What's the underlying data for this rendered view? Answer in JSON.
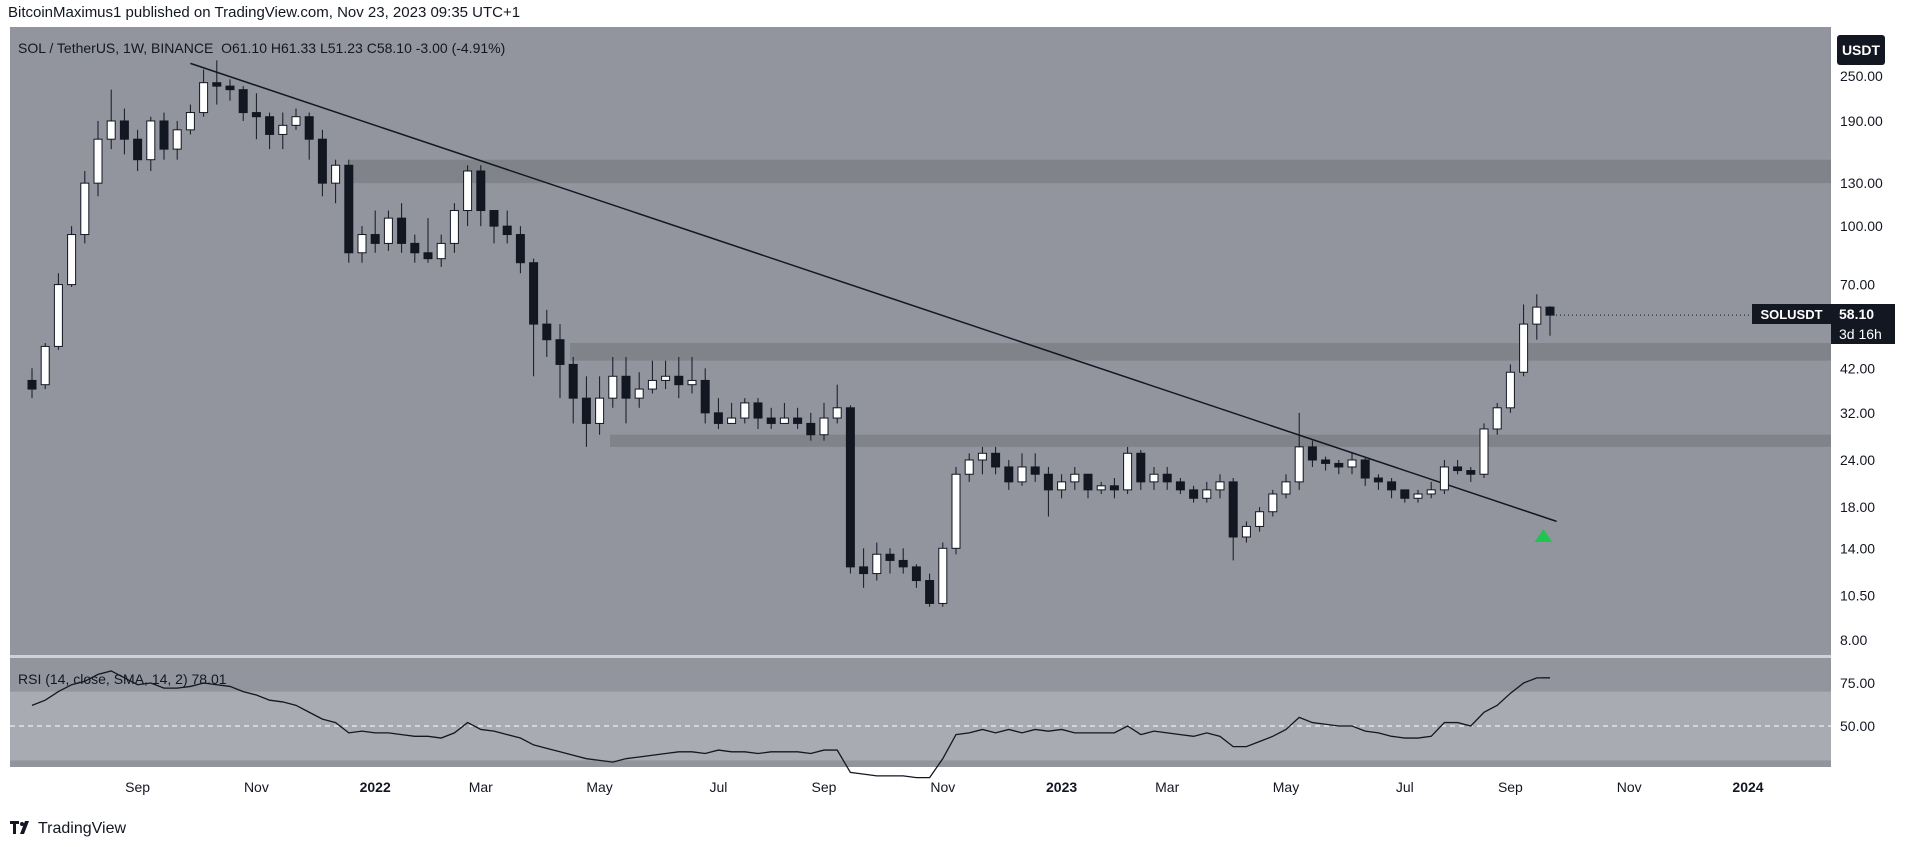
{
  "header": {
    "publisher": "BitcoinMaximus1 published on TradingView.com, Nov 23, 2023 09:35 UTC+1"
  },
  "legend": {
    "symbol": "SOL / TetherUS, 1W, BINANCE",
    "open_label": "O",
    "open": "61.10",
    "high_label": "H",
    "high": "61.33",
    "low_label": "L",
    "low": "51.23",
    "close_label": "C",
    "close": "58.10",
    "change": "-3.00 (-4.91%)"
  },
  "rsi_legend": {
    "label": "RSI (14, close, SMA, 14, 2)",
    "value": "78.01"
  },
  "currency_button": "USDT",
  "last_price": {
    "symbol": "SOLUSDT",
    "price": "58.10",
    "countdown": "3d 16h"
  },
  "footer": {
    "brand": "TradingView"
  },
  "colors": {
    "up": "#ffffff",
    "down": "#131722",
    "zone": "#7b7e85",
    "background": "#92959d",
    "arrow": "#21c453"
  },
  "icons": [
    "tradingview-logo-icon",
    "up-arrow-marker-icon"
  ],
  "chart_data": {
    "type": "candlestick",
    "title": "SOL / TetherUS, 1W, BINANCE",
    "y_scale": "log",
    "price_ticks": [
      "250.00",
      "190.00",
      "130.00",
      "100.00",
      "70.00",
      "42.00",
      "32.00",
      "24.00",
      "18.00",
      "14.00",
      "10.50",
      "8.00"
    ],
    "x_ticks": [
      "Sep",
      "Nov",
      "2022",
      "Mar",
      "May",
      "Jul",
      "Sep",
      "Nov",
      "2023",
      "Mar",
      "May",
      "Jul",
      "Sep",
      "Nov",
      "2024"
    ],
    "x_tick_weeks": [
      8,
      17,
      26,
      34,
      43,
      52,
      60,
      69,
      78,
      86,
      95,
      104,
      112,
      121,
      130
    ],
    "rsi_ticks": [
      "75.00",
      "50.00"
    ],
    "rsi_band": [
      30,
      70
    ],
    "horizontal_zones": [
      [
        130,
        150
      ],
      [
        44,
        49
      ],
      [
        26,
        28
      ]
    ],
    "trendline": {
      "from": {
        "week": 12,
        "price": 270
      },
      "to": {
        "week": 115.5,
        "price": 16.5
      }
    },
    "arrow": {
      "week": 114.5,
      "price": 15,
      "direction": "up"
    },
    "candles": [
      [
        39,
        37,
        42,
        35
      ],
      [
        38,
        48,
        49,
        37
      ],
      [
        48,
        70,
        75,
        47
      ],
      [
        70,
        95,
        100,
        69
      ],
      [
        95,
        130,
        140,
        90
      ],
      [
        130,
        170,
        190,
        120
      ],
      [
        170,
        190,
        230,
        160
      ],
      [
        190,
        170,
        205,
        155
      ],
      [
        170,
        150,
        180,
        140
      ],
      [
        150,
        190,
        195,
        140
      ],
      [
        190,
        160,
        200,
        150
      ],
      [
        160,
        180,
        190,
        150
      ],
      [
        180,
        200,
        210,
        175
      ],
      [
        200,
        240,
        260,
        195
      ],
      [
        240,
        235,
        275,
        210
      ],
      [
        235,
        230,
        245,
        215
      ],
      [
        230,
        200,
        235,
        190
      ],
      [
        200,
        195,
        225,
        170
      ],
      [
        195,
        175,
        200,
        160
      ],
      [
        175,
        185,
        200,
        160
      ],
      [
        185,
        195,
        205,
        180
      ],
      [
        195,
        170,
        200,
        150
      ],
      [
        170,
        130,
        180,
        120
      ],
      [
        130,
        145,
        150,
        115
      ],
      [
        145,
        85,
        150,
        80
      ],
      [
        85,
        95,
        100,
        80
      ],
      [
        95,
        90,
        110,
        85
      ],
      [
        90,
        105,
        110,
        86
      ],
      [
        105,
        90,
        115,
        85
      ],
      [
        90,
        85,
        95,
        80
      ],
      [
        85,
        82,
        105,
        80
      ],
      [
        82,
        90,
        95,
        78
      ],
      [
        90,
        110,
        115,
        85
      ],
      [
        110,
        140,
        145,
        100
      ],
      [
        140,
        110,
        145,
        100
      ],
      [
        110,
        100,
        110,
        90
      ],
      [
        100,
        95,
        110,
        90
      ],
      [
        95,
        80,
        100,
        75
      ],
      [
        80,
        55,
        82,
        40
      ],
      [
        55,
        50,
        60,
        45
      ],
      [
        50,
        43,
        55,
        35
      ],
      [
        43,
        35,
        45,
        30
      ],
      [
        35,
        30,
        40,
        26
      ],
      [
        30,
        35,
        40,
        28
      ],
      [
        35,
        40,
        45,
        33
      ],
      [
        40,
        35,
        45,
        30
      ],
      [
        35,
        37,
        41,
        33
      ],
      [
        37,
        39,
        44,
        36
      ],
      [
        39,
        40,
        44,
        37
      ],
      [
        40,
        38,
        45,
        35
      ],
      [
        38,
        39,
        45,
        36
      ],
      [
        39,
        32,
        42,
        30
      ],
      [
        32,
        30,
        35,
        29
      ],
      [
        30,
        31,
        34,
        30
      ],
      [
        31,
        34,
        35,
        30
      ],
      [
        34,
        31,
        35,
        29
      ],
      [
        31,
        30,
        33,
        29
      ],
      [
        30,
        31,
        34,
        30
      ],
      [
        31,
        30,
        33,
        29
      ],
      [
        30,
        28,
        32,
        27
      ],
      [
        28,
        31,
        34,
        27
      ],
      [
        31,
        33,
        38,
        30
      ],
      [
        33,
        12.5,
        33.5,
        12
      ],
      [
        12.5,
        12,
        14,
        11
      ],
      [
        12,
        13.5,
        14.5,
        11.5
      ],
      [
        13.5,
        13,
        14,
        12
      ],
      [
        13,
        12.5,
        14,
        12
      ],
      [
        12.5,
        11.5,
        12.7,
        11
      ],
      [
        11.5,
        10,
        12,
        9.8
      ],
      [
        10,
        14,
        14.5,
        9.8
      ],
      [
        14,
        22,
        23,
        13.5
      ],
      [
        22,
        24,
        25,
        21
      ],
      [
        24,
        25,
        26,
        22
      ],
      [
        25,
        23,
        26,
        22
      ],
      [
        23,
        21,
        24,
        20
      ],
      [
        21,
        23,
        25,
        20.5
      ],
      [
        23,
        22,
        25,
        21
      ],
      [
        22,
        20,
        23,
        17
      ],
      [
        20,
        21,
        22,
        19
      ],
      [
        21,
        22,
        23,
        20
      ],
      [
        22,
        20,
        22,
        19
      ],
      [
        20,
        20.5,
        21,
        19.5
      ],
      [
        20.5,
        20,
        21.5,
        19
      ],
      [
        20,
        25,
        26,
        19.5
      ],
      [
        25,
        21,
        25.5,
        20
      ],
      [
        21,
        22,
        23,
        20
      ],
      [
        22,
        21,
        23,
        20
      ],
      [
        21,
        20,
        21.5,
        19.5
      ],
      [
        20,
        19,
        20.5,
        18.5
      ],
      [
        19,
        20,
        21,
        18.5
      ],
      [
        20,
        21,
        22,
        19
      ],
      [
        21,
        15,
        21.5,
        13
      ],
      [
        15,
        16,
        16.5,
        14.5
      ],
      [
        16,
        17.5,
        18,
        15.5
      ],
      [
        17.5,
        19.5,
        20,
        17
      ],
      [
        19.5,
        21,
        22,
        19
      ],
      [
        21,
        26,
        32,
        20
      ],
      [
        26,
        24,
        27,
        23
      ],
      [
        24,
        23.5,
        24.5,
        22.5
      ],
      [
        23.5,
        23,
        24,
        22
      ],
      [
        23,
        24,
        25,
        22
      ],
      [
        24,
        21.5,
        24.5,
        20.5
      ],
      [
        21.5,
        21,
        22,
        20
      ],
      [
        21,
        20,
        21.5,
        19
      ],
      [
        20,
        19,
        20,
        18.5
      ],
      [
        19,
        19.5,
        20,
        18.5
      ],
      [
        19.5,
        20,
        21,
        19
      ],
      [
        20,
        23,
        24,
        19.5
      ],
      [
        23,
        22.5,
        24,
        22
      ],
      [
        22.5,
        22,
        23,
        21
      ],
      [
        22,
        29,
        30,
        21.5
      ],
      [
        29,
        33,
        34,
        28
      ],
      [
        33,
        41,
        43,
        32
      ],
      [
        41,
        55,
        62,
        40
      ],
      [
        55,
        61,
        66,
        50
      ],
      [
        61,
        58.1,
        61.33,
        51.23
      ]
    ],
    "rsi": [
      62,
      65,
      70,
      74,
      76,
      80,
      82,
      78,
      74,
      75,
      72,
      72,
      73,
      75,
      74,
      73,
      70,
      68,
      65,
      64,
      62,
      58,
      54,
      52,
      46,
      47,
      46,
      46,
      45,
      44,
      44,
      43,
      46,
      52,
      48,
      47,
      45,
      43,
      39,
      37,
      35,
      33,
      31,
      30,
      29,
      31,
      32,
      33,
      34,
      35,
      35,
      34,
      36,
      35,
      35,
      34,
      35,
      35,
      35,
      34,
      36,
      36,
      23,
      22,
      21,
      21,
      21,
      20,
      20,
      31,
      45,
      46,
      48,
      46,
      48,
      46,
      48,
      47,
      48,
      46,
      46,
      46,
      46,
      50,
      45,
      47,
      46,
      45,
      44,
      46,
      44,
      38,
      38,
      41,
      44,
      48,
      55,
      52,
      51,
      50,
      50,
      47,
      46,
      44,
      43,
      43,
      44,
      52,
      52,
      50,
      58,
      62,
      69,
      75,
      78,
      78.01
    ],
    "rsi_ylim": [
      20,
      85
    ]
  }
}
